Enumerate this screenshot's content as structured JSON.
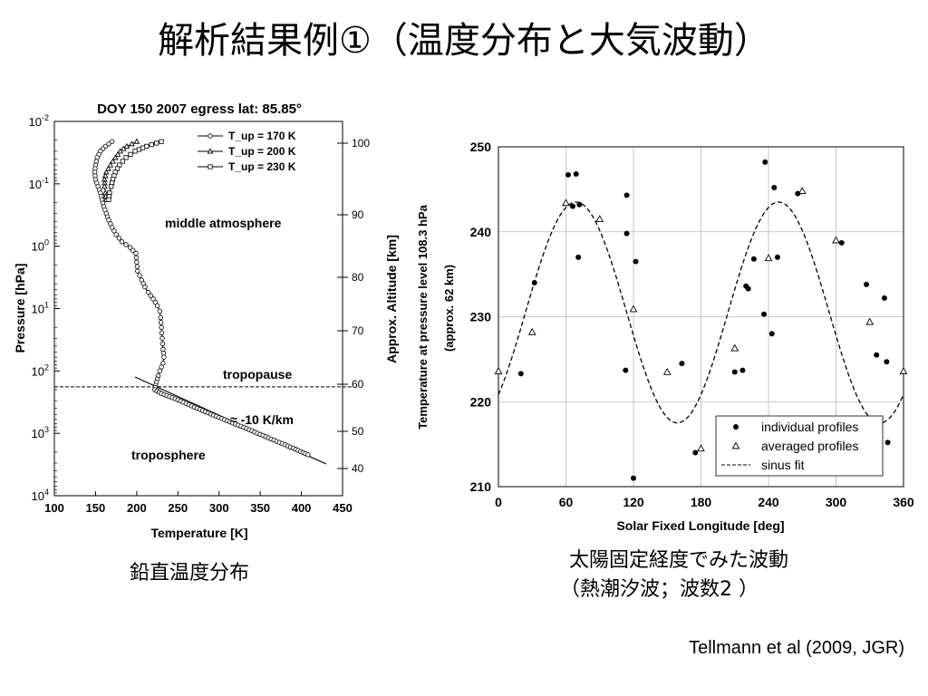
{
  "slide": {
    "title": "解析結果例①（温度分布と大気波動）",
    "caption_left": "鉛直温度分布",
    "caption_right_line1": "太陽固定経度でみた波動",
    "caption_right_line2": "（熱潮汐波；波数2 ）",
    "citation": "Tellmann et al (2009, JGR)"
  },
  "chart_data": [
    {
      "type": "line",
      "title": "DOY 150 2007 egress lat: 85.85°",
      "xlabel": "Temperature [K]",
      "ylabel": "Pressure [hPa]",
      "y2label": "Approx. Altitude [km]",
      "xlim": [
        100,
        450
      ],
      "xticks": [
        "100",
        "150",
        "200",
        "250",
        "300",
        "350",
        "400",
        "450"
      ],
      "ylim_log10": [
        -2,
        4
      ],
      "y_scale": "log, inverted",
      "yticks": [
        "10-2",
        "10-1",
        "100",
        "101",
        "102",
        "103",
        "104"
      ],
      "y2ticks": [
        "100",
        "90",
        "80",
        "70",
        "60",
        "50",
        "40"
      ],
      "legend_position": "top-right",
      "series": [
        {
          "name": "T_up = 170 K",
          "marker": "circle",
          "points": [
            [
              170,
              0.021
            ],
            [
              162,
              0.025
            ],
            [
              156,
              0.03
            ],
            [
              152,
              0.038
            ],
            [
              150,
              0.05
            ],
            [
              149,
              0.065
            ],
            [
              150,
              0.085
            ],
            [
              153,
              0.11
            ],
            [
              156,
              0.14
            ],
            [
              158,
              0.18
            ],
            [
              160,
              0.23
            ],
            [
              163,
              0.3
            ],
            [
              166,
              0.38
            ],
            [
              170,
              0.5
            ],
            [
              175,
              0.65
            ],
            [
              182,
              0.85
            ],
            [
              192,
              1.05
            ],
            [
              199,
              1.3
            ],
            [
              200,
              1.8
            ],
            [
              201,
              2.5
            ],
            [
              206,
              3.5
            ],
            [
              210,
              4.5
            ],
            [
              214,
              5.5
            ],
            [
              220,
              7
            ],
            [
              225,
              9
            ],
            [
              228,
              11
            ],
            [
              229,
              14
            ],
            [
              230,
              20
            ],
            [
              231,
              30
            ],
            [
              232,
              45
            ],
            [
              233,
              60
            ],
            [
              232,
              75
            ],
            [
              228,
              100
            ],
            [
              226,
              120
            ]
          ]
        },
        {
          "name": "T_up = 200 K",
          "marker": "triangle",
          "points": [
            [
              200,
              0.021
            ],
            [
              188,
              0.025
            ],
            [
              180,
              0.03
            ],
            [
              174,
              0.038
            ],
            [
              168,
              0.05
            ],
            [
              163,
              0.065
            ],
            [
              161,
              0.085
            ],
            [
              161,
              0.11
            ],
            [
              162,
              0.14
            ],
            [
              163,
              0.18
            ]
          ]
        },
        {
          "name": "T_up = 230 K",
          "marker": "square",
          "points": [
            [
              230,
              0.021
            ],
            [
              212,
              0.025
            ],
            [
              198,
              0.03
            ],
            [
              187,
              0.038
            ],
            [
              179,
              0.05
            ],
            [
              174,
              0.065
            ],
            [
              171,
              0.085
            ],
            [
              169,
              0.11
            ],
            [
              167,
              0.14
            ],
            [
              166,
              0.18
            ]
          ]
        },
        {
          "name": "troposphere profile",
          "marker": "circle",
          "points": [
            [
              226,
              120
            ],
            [
              223,
              170
            ],
            [
              222,
              200
            ],
            [
              230,
              230
            ],
            [
              250,
              290
            ],
            [
              270,
              380
            ],
            [
              290,
              490
            ],
            [
              310,
              630
            ],
            [
              330,
              800
            ],
            [
              350,
              1040
            ],
            [
              370,
              1340
            ],
            [
              390,
              1730
            ],
            [
              408,
              2200
            ]
          ]
        }
      ],
      "lapse_line": [
        [
          198,
          125
        ],
        [
          430,
          3100
        ]
      ],
      "tropopause_pressure": 180,
      "annotations": [
        "middle atmosphere",
        "tropopause",
        "≈ -10 K/km",
        "troposphere"
      ]
    },
    {
      "type": "scatter",
      "xlabel": "Solar Fixed Longitude [deg]",
      "ylabel_line1": "Temperature at pressure level 108.3 hPa",
      "ylabel_line2": "(approx. 62 km)",
      "xlim": [
        0,
        360
      ],
      "ylim": [
        210,
        250
      ],
      "xticks": [
        "0",
        "60",
        "120",
        "180",
        "240",
        "300",
        "360"
      ],
      "yticks": [
        "210",
        "220",
        "230",
        "240",
        "250"
      ],
      "grid": true,
      "legend_position": "bottom-right",
      "series": [
        {
          "name": "individual profiles",
          "marker": "filled-circle",
          "points": [
            [
              20,
              223.3
            ],
            [
              32,
              234
            ],
            [
              62,
              246.7
            ],
            [
              66,
              243
            ],
            [
              69,
              246.8
            ],
            [
              71,
              237
            ],
            [
              72,
              243.2
            ],
            [
              113,
              223.7
            ],
            [
              114,
              244.3
            ],
            [
              114,
              239.8
            ],
            [
              120,
              211
            ],
            [
              122,
              236.5
            ],
            [
              163,
              224.5
            ],
            [
              175,
              214
            ],
            [
              210,
              223.5
            ],
            [
              217,
              223.7
            ],
            [
              220,
              233.6
            ],
            [
              222,
              233.3
            ],
            [
              227,
              236.8
            ],
            [
              236,
              230.3
            ],
            [
              237,
              248.2
            ],
            [
              243,
              228
            ],
            [
              245,
              245.2
            ],
            [
              248,
              237
            ],
            [
              266,
              244.5
            ],
            [
              305,
              238.7
            ],
            [
              327,
              233.8
            ],
            [
              336,
              225.5
            ],
            [
              343,
              232.2
            ],
            [
              345,
              224.7
            ],
            [
              346,
              215.2
            ]
          ]
        },
        {
          "name": "averaged profiles",
          "marker": "open-triangle",
          "points": [
            [
              0,
              223.6
            ],
            [
              30,
              228.2
            ],
            [
              60,
              243.4
            ],
            [
              90,
              241.5
            ],
            [
              120,
              230.9
            ],
            [
              150,
              223.5
            ],
            [
              180,
              214.5
            ],
            [
              210,
              226.3
            ],
            [
              240,
              236.9
            ],
            [
              270,
              244.8
            ],
            [
              300,
              239
            ],
            [
              330,
              229.4
            ],
            [
              360,
              223.6
            ]
          ]
        },
        {
          "name": "sinus fit",
          "style": "dashed",
          "mean": 230.5,
          "amplitude": 13,
          "wavenumber": 2,
          "peak_longitude": 69
        }
      ]
    }
  ]
}
